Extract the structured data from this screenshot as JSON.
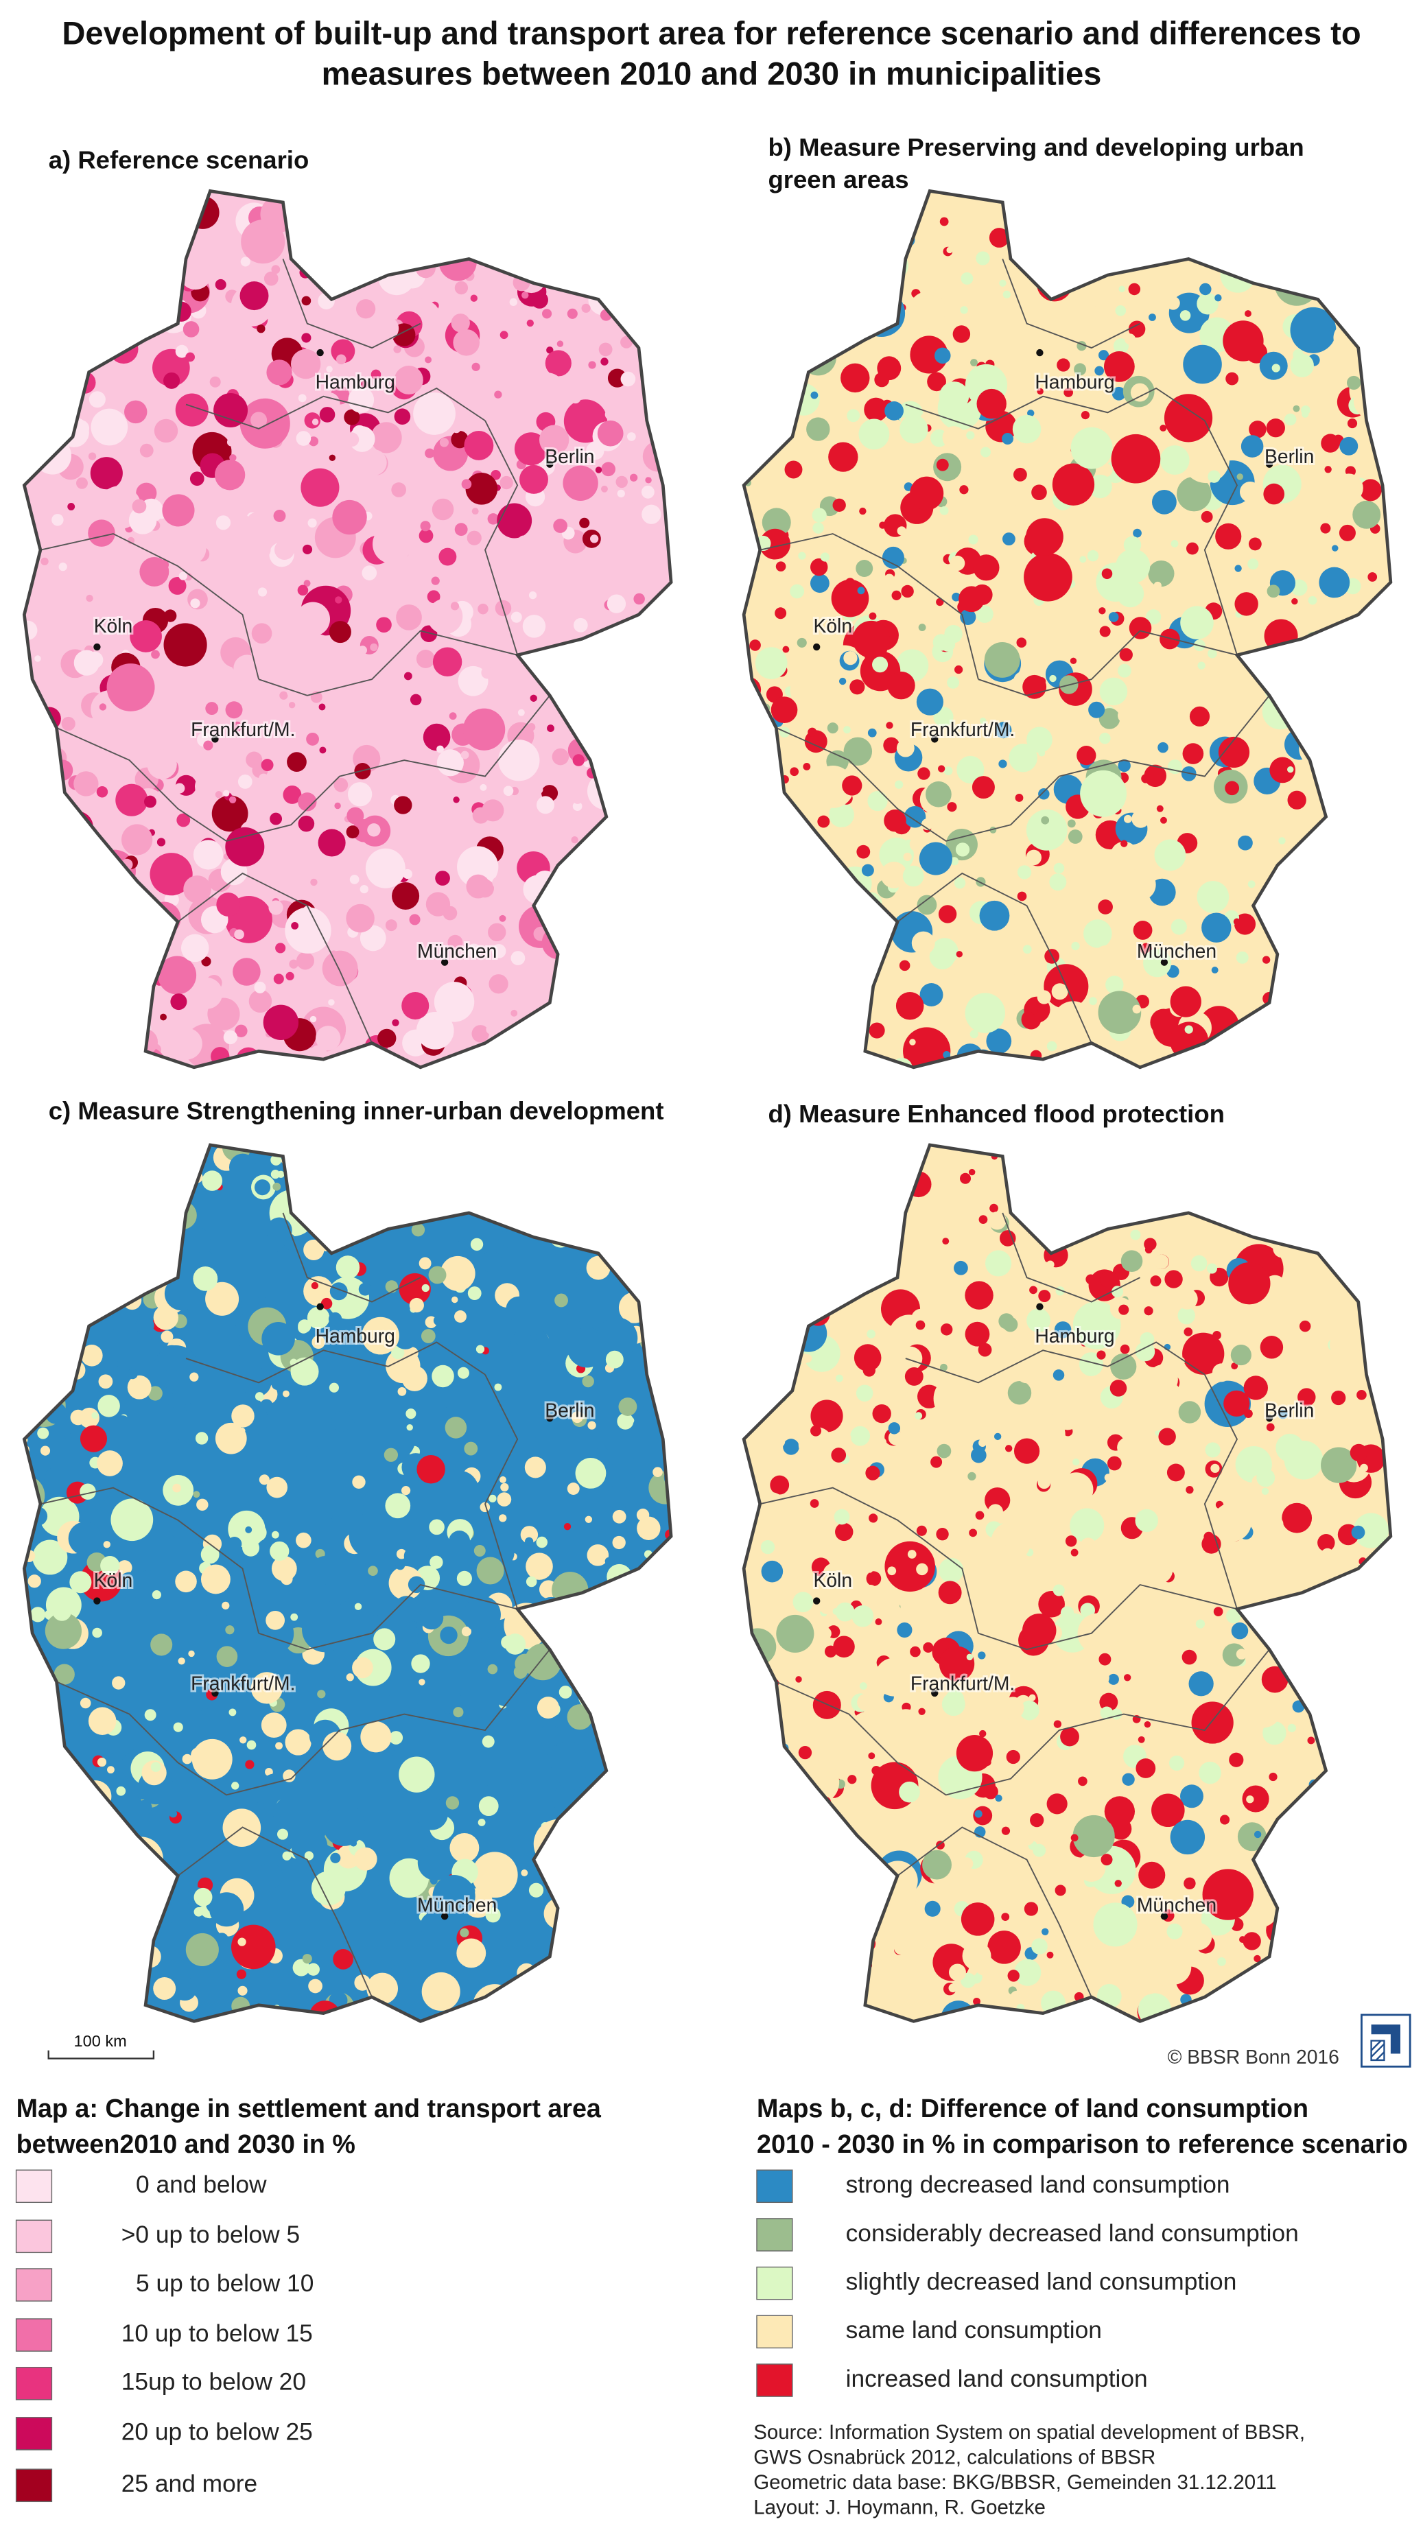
{
  "title": [
    "Development of built-up and transport area for reference scenario and differences to",
    "measures between 2010 and 2030 in municipalities"
  ],
  "panels": [
    {
      "title": [
        "a) Reference scenario"
      ]
    },
    {
      "title": [
        "b) Measure Preserving and developing urban",
        "green areas"
      ]
    },
    {
      "title": [
        "c) Measure Strengthening inner-urban development"
      ]
    },
    {
      "title": [
        "d) Measure Enhanced flood protection"
      ]
    }
  ],
  "cities": [
    "Hamburg",
    "Berlin",
    "Köln",
    "Frankfurt/M.",
    "München"
  ],
  "scale_bar": "100 km",
  "copyright": "© BBSR Bonn 2016",
  "legend_a": {
    "title": [
      "Map a: Change in settlement and transport area",
      "between2010 and 2030 in %"
    ],
    "items": [
      {
        "label": "0 and below",
        "color": "#fde3ee"
      },
      {
        "label": ">0 up to below 5",
        "color": "#fbc6dd"
      },
      {
        "label": "5 up to below 10",
        "color": "#f7a1c6"
      },
      {
        "label": "10 up to below 15",
        "color": "#f16fa9"
      },
      {
        "label": "15up to below 20",
        "color": "#e8337f"
      },
      {
        "label": "20 up to below 25",
        "color": "#cc0a5b"
      },
      {
        "label": "25 and more",
        "color": "#a3001f"
      }
    ]
  },
  "legend_bcd": {
    "title": [
      "Maps b, c, d: Difference of land consumption",
      "2010 - 2030 in % in comparison to reference scenario"
    ],
    "items": [
      {
        "label": "strong decreased land consumption",
        "color": "#2c8ac4"
      },
      {
        "label": "considerably decreased land consumption",
        "color": "#9cbd8e"
      },
      {
        "label": "slightly decreased land consumption",
        "color": "#dcf8c4"
      },
      {
        "label": "same land consumption",
        "color": "#fde9b6"
      },
      {
        "label": "increased land consumption",
        "color": "#e3142b"
      }
    ]
  },
  "source": [
    "Source: Information System on spatial development of BBSR,",
    "GWS Osnabrück 2012, calculations of BBSR",
    "Geometric data base: BKG/BBSR, Gemeinden 31.12.2011",
    "Layout: J. Hoymann, R. Goetzke"
  ]
}
